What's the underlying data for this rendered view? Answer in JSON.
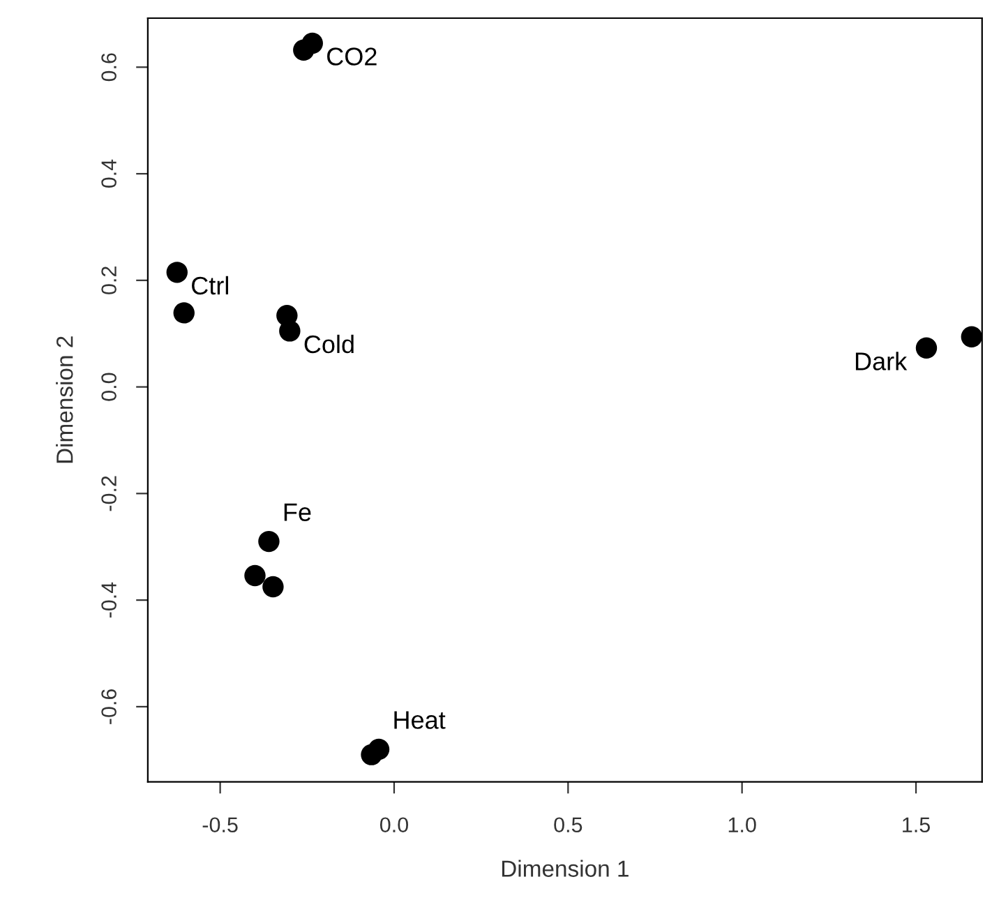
{
  "chart_data": {
    "type": "scatter",
    "xlabel": "Dimension 1",
    "ylabel": "Dimension 2",
    "x": [
      -0.26,
      -0.235,
      -0.624,
      -0.604,
      -0.308,
      -0.3,
      -0.36,
      -0.4,
      -0.348,
      -0.044,
      -0.065,
      1.53,
      1.66
    ],
    "series": [
      {
        "color": "#000000",
        "values": [
          0.632,
          0.645,
          0.215,
          0.139,
          0.134,
          0.105,
          -0.29,
          -0.354,
          -0.375,
          -0.68,
          -0.69,
          0.073,
          0.094
        ]
      }
    ],
    "annotations": [
      {
        "text": "CO2",
        "x": -0.235,
        "y": 0.645
      },
      {
        "text": "Ctrl",
        "x": -0.624,
        "y": 0.215
      },
      {
        "text": "Cold",
        "x": -0.3,
        "y": 0.105
      },
      {
        "text": "Fe",
        "x": -0.36,
        "y": -0.29
      },
      {
        "text": "Heat",
        "x": -0.044,
        "y": -0.68
      },
      {
        "text": "Dark",
        "x": 1.53,
        "y": 0.073
      }
    ],
    "xlim": [
      -0.708,
      1.69
    ],
    "ylim": [
      -0.741,
      0.692
    ],
    "xticks": [
      {
        "value": -0.5,
        "label": "-0.5"
      },
      {
        "value": 0.0,
        "label": "0.0"
      },
      0.5,
      {
        "value": 1.0,
        "label": "1.0"
      },
      1.5
    ],
    "yticks": [
      {
        "value": -0.6,
        "label": "-0.6"
      },
      {
        "value": -0.4,
        "label": "-0.4"
      },
      {
        "value": -0.2,
        "label": "-0.2"
      },
      {
        "value": 0.0,
        "label": "0.0"
      },
      0.2,
      0.4,
      0.6
    ],
    "marker": "circle"
  }
}
